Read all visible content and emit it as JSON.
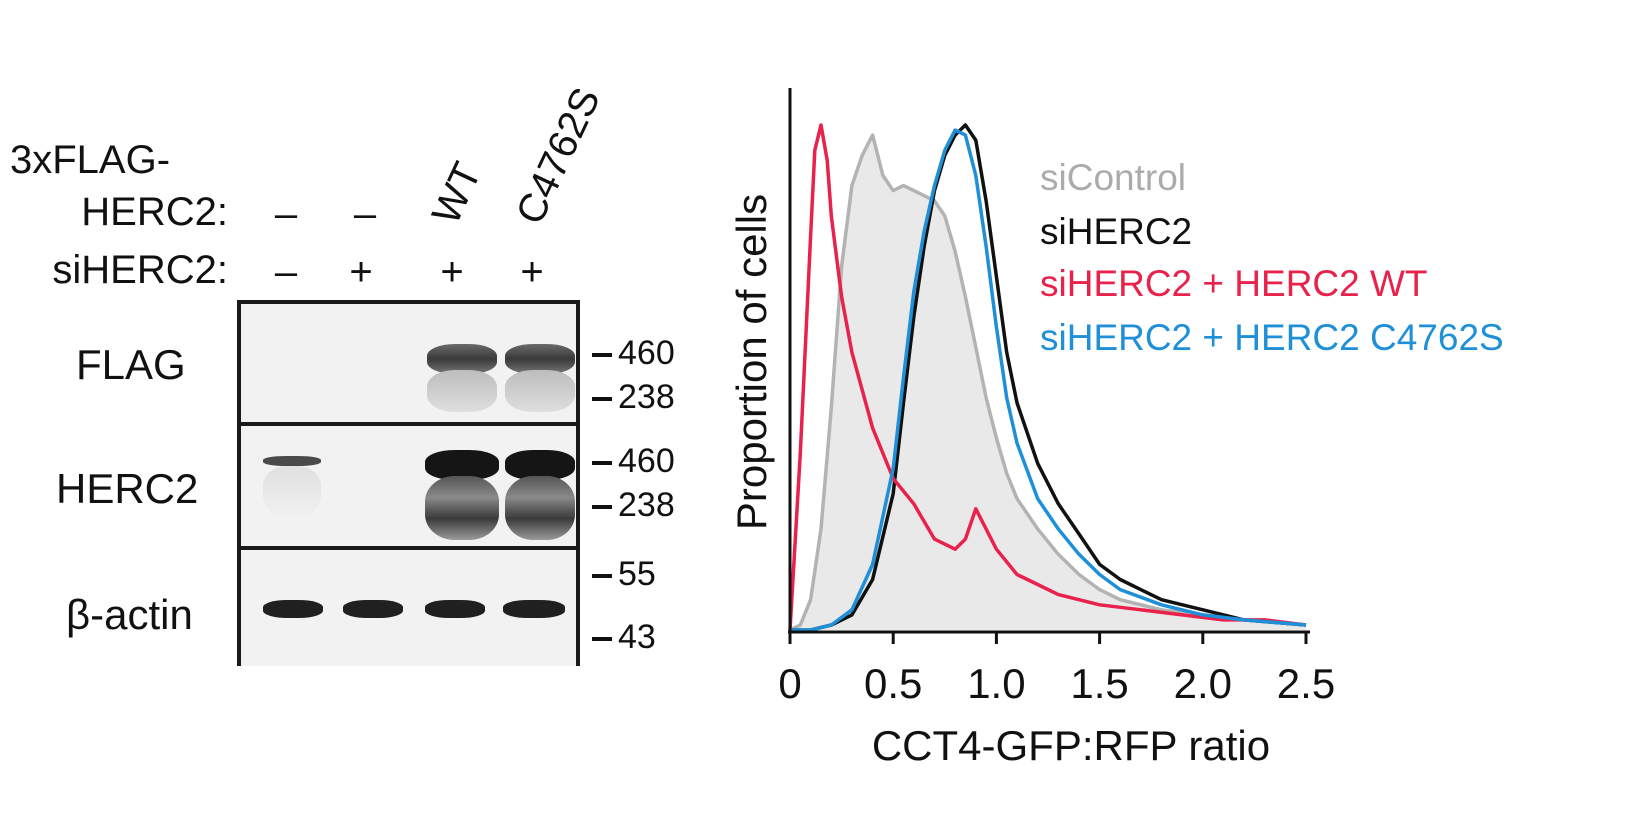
{
  "blot": {
    "row_labels": {
      "flag_line1": "3xFLAG-",
      "flag_line2": "HERC2:",
      "si": "siHERC2:"
    },
    "lanes": [
      {
        "flag": "–",
        "si": "–"
      },
      {
        "flag": "–",
        "si": "+"
      },
      {
        "flag": "WT",
        "si": "+"
      },
      {
        "flag": "C4762S",
        "si": "+"
      }
    ],
    "panels": [
      {
        "label": "FLAG",
        "markers": [
          "460",
          "238"
        ]
      },
      {
        "label": "HERC2",
        "markers": [
          "460",
          "238"
        ]
      },
      {
        "label": "β-actin",
        "markers": [
          "55",
          "43"
        ]
      }
    ]
  },
  "chart_data": {
    "type": "line",
    "xlabel": "CCT4-GFP:RFP ratio",
    "ylabel": "Proportion of cells",
    "xlim": [
      0,
      2.5
    ],
    "xticks": [
      "0",
      "0.5",
      "1.0",
      "1.5",
      "2.0",
      "2.5"
    ],
    "ylim": [
      0,
      1
    ],
    "legend_placement": "right",
    "series": [
      {
        "name": "siControl",
        "color": "#b3b3b3",
        "fill": "#e9e9e9",
        "x": [
          0.0,
          0.05,
          0.1,
          0.15,
          0.2,
          0.25,
          0.3,
          0.35,
          0.4,
          0.45,
          0.5,
          0.55,
          0.6,
          0.65,
          0.7,
          0.75,
          0.8,
          0.85,
          0.9,
          0.95,
          1.0,
          1.05,
          1.1,
          1.2,
          1.3,
          1.4,
          1.5,
          1.6,
          1.8,
          2.0,
          2.2,
          2.5
        ],
        "y": [
          0.0,
          0.01,
          0.06,
          0.2,
          0.44,
          0.72,
          0.88,
          0.94,
          0.98,
          0.9,
          0.87,
          0.88,
          0.87,
          0.86,
          0.85,
          0.82,
          0.75,
          0.66,
          0.56,
          0.46,
          0.38,
          0.31,
          0.26,
          0.2,
          0.15,
          0.11,
          0.08,
          0.06,
          0.04,
          0.03,
          0.02,
          0.01
        ]
      },
      {
        "name": "siHERC2",
        "color": "#111111",
        "x": [
          0.0,
          0.1,
          0.2,
          0.3,
          0.4,
          0.5,
          0.55,
          0.6,
          0.65,
          0.7,
          0.75,
          0.8,
          0.85,
          0.9,
          0.95,
          1.0,
          1.05,
          1.1,
          1.2,
          1.3,
          1.4,
          1.5,
          1.6,
          1.8,
          2.0,
          2.2,
          2.5
        ],
        "y": [
          0.0,
          0.0,
          0.01,
          0.03,
          0.1,
          0.27,
          0.45,
          0.62,
          0.76,
          0.87,
          0.94,
          0.98,
          1.0,
          0.97,
          0.85,
          0.7,
          0.55,
          0.45,
          0.33,
          0.25,
          0.19,
          0.13,
          0.1,
          0.06,
          0.04,
          0.02,
          0.01
        ]
      },
      {
        "name": "siHERC2 + HERC2 WT",
        "color": "#e8224a",
        "x": [
          0.0,
          0.05,
          0.1,
          0.12,
          0.15,
          0.18,
          0.2,
          0.25,
          0.3,
          0.4,
          0.5,
          0.6,
          0.7,
          0.8,
          0.85,
          0.9,
          0.95,
          1.0,
          1.1,
          1.2,
          1.3,
          1.4,
          1.5,
          1.7,
          1.9,
          2.1,
          2.3,
          2.5
        ],
        "y": [
          0.0,
          0.35,
          0.78,
          0.95,
          1.0,
          0.93,
          0.82,
          0.66,
          0.55,
          0.4,
          0.3,
          0.25,
          0.18,
          0.16,
          0.18,
          0.24,
          0.2,
          0.16,
          0.11,
          0.09,
          0.07,
          0.06,
          0.05,
          0.04,
          0.03,
          0.02,
          0.02,
          0.01
        ]
      },
      {
        "name": "siHERC2 + HERC2 C4762S",
        "color": "#1f90d8",
        "x": [
          0.0,
          0.1,
          0.2,
          0.3,
          0.4,
          0.5,
          0.55,
          0.6,
          0.65,
          0.7,
          0.75,
          0.8,
          0.85,
          0.9,
          0.95,
          1.0,
          1.05,
          1.1,
          1.2,
          1.3,
          1.4,
          1.5,
          1.6,
          1.8,
          2.0,
          2.2,
          2.5
        ],
        "y": [
          0.0,
          0.0,
          0.01,
          0.04,
          0.13,
          0.32,
          0.5,
          0.67,
          0.79,
          0.88,
          0.95,
          0.99,
          0.98,
          0.9,
          0.76,
          0.6,
          0.46,
          0.37,
          0.26,
          0.2,
          0.15,
          0.11,
          0.08,
          0.05,
          0.03,
          0.02,
          0.01
        ]
      }
    ]
  }
}
